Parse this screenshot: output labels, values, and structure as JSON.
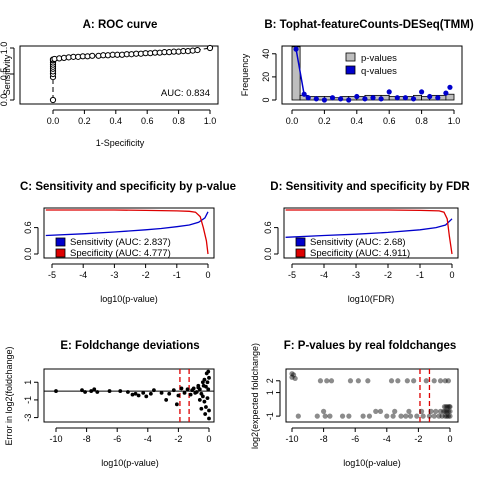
{
  "chart_data": [
    {
      "panel": "A",
      "type": "line",
      "title": "A: ROC curve",
      "xlabel": "1-Specificity",
      "ylabel": "Sensitivity",
      "xlim": [
        0,
        1
      ],
      "ylim": [
        0,
        1
      ],
      "xticks": [
        "0.0",
        "0.2",
        "0.4",
        "0.6",
        "0.8",
        "1.0"
      ],
      "yticks": [
        "0.0",
        "0.5",
        "1.0"
      ],
      "annotation": "AUC: 0.834",
      "curve": {
        "x": [
          0,
          0,
          0,
          0,
          0,
          0,
          0,
          0,
          0,
          0,
          0.01,
          0.04,
          0.07,
          0.1,
          0.13,
          0.16,
          0.19,
          0.22,
          0.25,
          0.29,
          0.32,
          0.35,
          0.38,
          0.41,
          0.44,
          0.47,
          0.5,
          0.53,
          0.56,
          0.59,
          0.62,
          0.65,
          0.68,
          0.71,
          0.74,
          0.77,
          0.8,
          0.83,
          0.86,
          0.89,
          0.92,
          1.0
        ],
        "y": [
          0,
          0.44,
          0.5,
          0.55,
          0.6,
          0.64,
          0.68,
          0.72,
          0.76,
          0.78,
          0.79,
          0.8,
          0.81,
          0.82,
          0.83,
          0.83,
          0.84,
          0.84,
          0.85,
          0.85,
          0.86,
          0.86,
          0.87,
          0.87,
          0.87,
          0.88,
          0.88,
          0.89,
          0.89,
          0.9,
          0.9,
          0.91,
          0.91,
          0.92,
          0.92,
          0.93,
          0.93,
          0.94,
          0.94,
          0.95,
          0.96,
          1.0
        ]
      }
    },
    {
      "panel": "B",
      "type": "bar",
      "title": "B: Tophat-featureCounts-DESeq(TMM)",
      "xlabel": "",
      "ylabel": "Frequency",
      "xlim": [
        0,
        1
      ],
      "ylim": [
        0,
        45
      ],
      "xticks": [
        "0.0",
        "0.2",
        "0.4",
        "0.6",
        "0.8",
        "1.0"
      ],
      "yticks": [
        "0",
        "20",
        "40"
      ],
      "legend": [
        "p-values",
        "q-values"
      ],
      "series": [
        {
          "name": "p-values",
          "bin_starts": [
            0,
            0.05,
            0.1,
            0.15,
            0.2,
            0.25,
            0.3,
            0.35,
            0.4,
            0.45,
            0.5,
            0.55,
            0.6,
            0.65,
            0.7,
            0.75,
            0.8,
            0.85,
            0.9,
            0.95
          ],
          "values": [
            46,
            4,
            3,
            3,
            3,
            2,
            3,
            3,
            3,
            4,
            4,
            4,
            3,
            3,
            3,
            4,
            3,
            4,
            4,
            5
          ]
        },
        {
          "name": "q-values",
          "x": [
            0.025,
            0.075,
            0.1,
            0.15,
            0.2,
            0.25,
            0.3,
            0.35,
            0.4,
            0.45,
            0.5,
            0.55,
            0.6,
            0.65,
            0.7,
            0.75,
            0.8,
            0.85,
            0.9,
            0.95,
            0.975
          ],
          "y": [
            44,
            5,
            2,
            1,
            0,
            2,
            1,
            0,
            3,
            1,
            2,
            1,
            7,
            2,
            2,
            1,
            7,
            3,
            2,
            6,
            11
          ]
        }
      ]
    },
    {
      "panel": "C",
      "type": "line",
      "title": "C: Sensitivity and specificity by p-value",
      "xlabel": "log10(p-value)",
      "ylabel": "",
      "xlim": [
        -5,
        0
      ],
      "ylim": [
        0,
        1
      ],
      "xticks": [
        "-5",
        "-4",
        "-3",
        "-2",
        "-1",
        "0"
      ],
      "yticks": [
        "0.0",
        "0.6"
      ],
      "series": [
        {
          "name": "Sensitivity (AUC: 2.837)",
          "color": "#0000cc",
          "x": [
            -5.2,
            -4,
            -3,
            -2,
            -1.5,
            -1,
            -0.6,
            -0.3,
            -0.1,
            0
          ],
          "y": [
            0.42,
            0.46,
            0.5,
            0.55,
            0.58,
            0.62,
            0.66,
            0.72,
            0.82,
            0.96
          ]
        },
        {
          "name": "Specificity (AUC: 4.777)",
          "color": "#dd0000",
          "x": [
            -5.2,
            -3,
            -2,
            -1,
            -0.6,
            -0.4,
            -0.25,
            -0.15,
            -0.05,
            0
          ],
          "y": [
            1.0,
            1.0,
            0.99,
            0.98,
            0.97,
            0.95,
            0.85,
            0.6,
            0.3,
            0.0
          ]
        }
      ]
    },
    {
      "panel": "D",
      "type": "line",
      "title": "D: Sensitivity and specificity by FDR",
      "xlabel": "log10(FDR)",
      "ylabel": "",
      "xlim": [
        -5,
        0
      ],
      "ylim": [
        0,
        1
      ],
      "xticks": [
        "-5",
        "-4",
        "-3",
        "-2",
        "-1",
        "0"
      ],
      "yticks": [
        "0.0",
        "0.6"
      ],
      "series": [
        {
          "name": "Sensitivity (AUC: 2.68)",
          "color": "#0000cc",
          "x": [
            -5.2,
            -4,
            -3,
            -2,
            -1,
            -0.5,
            -0.2,
            0
          ],
          "y": [
            0.38,
            0.42,
            0.45,
            0.49,
            0.55,
            0.6,
            0.66,
            0.8
          ]
        },
        {
          "name": "Specificity (AUC: 4.911)",
          "color": "#dd0000",
          "x": [
            -5.2,
            -2,
            -1,
            -0.4,
            -0.25,
            -0.15,
            -0.08,
            0
          ],
          "y": [
            1.0,
            1.0,
            0.99,
            0.98,
            0.95,
            0.8,
            0.4,
            0.0
          ]
        }
      ]
    },
    {
      "panel": "E",
      "type": "scatter",
      "title": "E: Foldchange deviations",
      "xlabel": "log10(p-value)",
      "ylabel": "Error in log2(foldchange)",
      "xlim": [
        -10.3,
        0.3
      ],
      "ylim": [
        -3.5,
        2.5
      ],
      "xticks": [
        "-10",
        "-8",
        "-6",
        "-4",
        "-2",
        "0"
      ],
      "yticks": [
        "-3",
        "-1",
        "1"
      ],
      "vlines": [
        -1.9,
        -1.3
      ],
      "points": {
        "x": [
          -10,
          -8.3,
          -8.1,
          -7.7,
          -7.5,
          -7.3,
          -6.5,
          -5.8,
          -5.3,
          -5.0,
          -4.8,
          -4.6,
          -4.3,
          -4.1,
          -3.8,
          -3.6,
          -3.1,
          -2.8,
          -2.6,
          -2.3,
          -2.1,
          -2.0,
          -1.8,
          -1.6,
          -1.4,
          -1.2,
          -1.0,
          -0.8,
          -0.7,
          -0.6,
          -0.5,
          -0.4,
          -0.4,
          -0.3,
          -0.3,
          -0.2,
          -0.2,
          -0.1,
          -0.1,
          -0.05,
          0,
          0,
          0,
          -0.15,
          -0.35,
          -0.5,
          -0.7,
          -0.9,
          -1.1,
          -0.25,
          -0.05,
          -0.6
        ],
        "y": [
          0,
          0.1,
          -0.1,
          0,
          0.2,
          -0.1,
          0,
          0,
          -0.1,
          -0.4,
          -0.3,
          -0.5,
          -0.2,
          -0.6,
          -0.3,
          0.1,
          -0.2,
          -1.0,
          -0.3,
          0.1,
          -1.5,
          -0.5,
          0.3,
          -0.2,
          0.2,
          -0.4,
          0.3,
          -0.1,
          0.4,
          0.2,
          -0.3,
          1.0,
          -0.6,
          1.3,
          -1.2,
          0.5,
          -1.8,
          1.0,
          -0.8,
          0.2,
          1.5,
          -2.2,
          -3.1,
          2.0,
          0.6,
          -2.0,
          0.6,
          -0.2,
          0.1,
          -2.6,
          2.2,
          -1.0
        ]
      }
    },
    {
      "panel": "F",
      "type": "scatter",
      "title": "F: P-values by real foldchanges",
      "xlabel": "log10(p-value)",
      "ylabel": "log2(expected foldchange)",
      "xlim": [
        -10.3,
        0.3
      ],
      "ylim": [
        -1.5,
        3
      ],
      "xticks": [
        "-10",
        "-8",
        "-6",
        "-4",
        "-2",
        "0"
      ],
      "yticks": [
        "-1",
        "1",
        "2"
      ],
      "vlines": [
        -1.9,
        -1.3
      ],
      "points": {
        "x": [
          -10,
          -10,
          -9.9,
          -9.8,
          -8.2,
          -7.8,
          -7.5,
          -6.3,
          -5.8,
          -5.2,
          -3.7,
          -3.3,
          -2.7,
          -2.3,
          -1.5,
          -1.0,
          -0.6,
          -0.3,
          -0.1,
          -9.6,
          -8.4,
          -7.9,
          -7.6,
          -6.8,
          -6.4,
          -5.5,
          -5.1,
          -4.0,
          -3.6,
          -3.1,
          -2.8,
          -2.5,
          -2.1,
          -1.7,
          -1.3,
          -1.0,
          -0.7,
          -0.5,
          -0.3,
          -0.2,
          -0.1,
          0,
          -8.0,
          -4.7,
          -4.4,
          -3.5,
          -2.6,
          -1.8,
          -1.2,
          -0.9,
          -0.6,
          -0.4,
          -0.3,
          -0.2,
          -0.1,
          0,
          0,
          -0.35,
          -0.25,
          -0.15,
          -0.05
        ],
        "y": [
          2.6,
          2.3,
          2.5,
          2.2,
          2.0,
          2.0,
          2.0,
          2.0,
          2.0,
          2.0,
          2.0,
          2.0,
          2.0,
          2.0,
          2.0,
          2.0,
          2.0,
          2.0,
          2.0,
          -1,
          -1,
          -1,
          -1,
          -1,
          -1,
          -1,
          -1,
          -1,
          -1,
          -1,
          -1,
          -1,
          -1,
          -1,
          -1,
          -1,
          -1,
          -1,
          -1,
          -1,
          -1,
          -1,
          -0.6,
          -0.6,
          -0.6,
          -0.6,
          -0.6,
          -0.6,
          -0.6,
          -0.6,
          -0.6,
          -0.6,
          -0.6,
          -0.6,
          -0.6,
          -0.6,
          -0.2,
          -0.2,
          -0.2,
          -0.2,
          -0.2
        ]
      }
    }
  ]
}
